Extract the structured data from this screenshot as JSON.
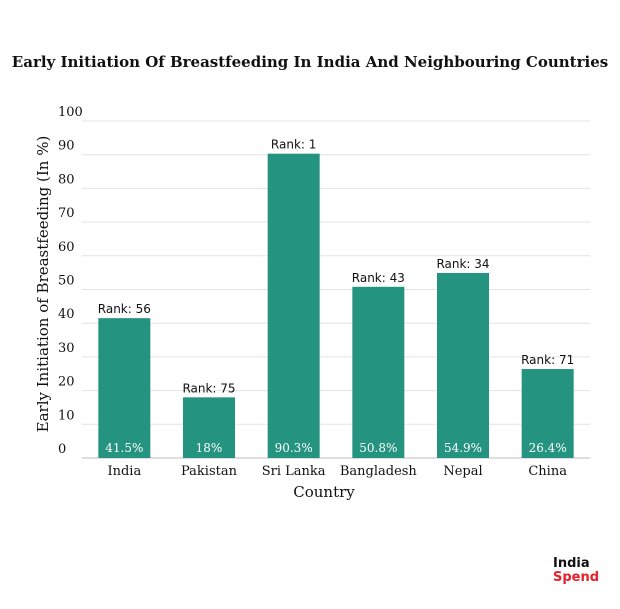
{
  "chart_data": {
    "type": "bar",
    "title": "Early Initiation Of Breastfeeding In India And Neighbouring Countries",
    "xlabel": "Country",
    "ylabel": "Early Initiation of Breastfeeding (In %)",
    "ylim": [
      0,
      100
    ],
    "yticks": [
      0,
      10,
      20,
      30,
      40,
      50,
      60,
      70,
      80,
      90,
      100
    ],
    "grid": true,
    "legend": "none",
    "bar_color": "#24937f",
    "categories": [
      "India",
      "Pakistan",
      "Sri Lanka",
      "Bangladesh",
      "Nepal",
      "China"
    ],
    "values": [
      41.5,
      18,
      90.3,
      50.8,
      54.9,
      26.4
    ],
    "value_labels": [
      "41.5%",
      "18%",
      "90.3%",
      "50.8%",
      "54.9%",
      "26.4%"
    ],
    "annotations": [
      "Rank: 56",
      "Rank: 75",
      "Rank: 1",
      "Rank: 43",
      "Rank: 34",
      "Rank: 71"
    ]
  },
  "logo": {
    "top": "India",
    "bottom": "Spend",
    "accent": "#e8202a"
  }
}
